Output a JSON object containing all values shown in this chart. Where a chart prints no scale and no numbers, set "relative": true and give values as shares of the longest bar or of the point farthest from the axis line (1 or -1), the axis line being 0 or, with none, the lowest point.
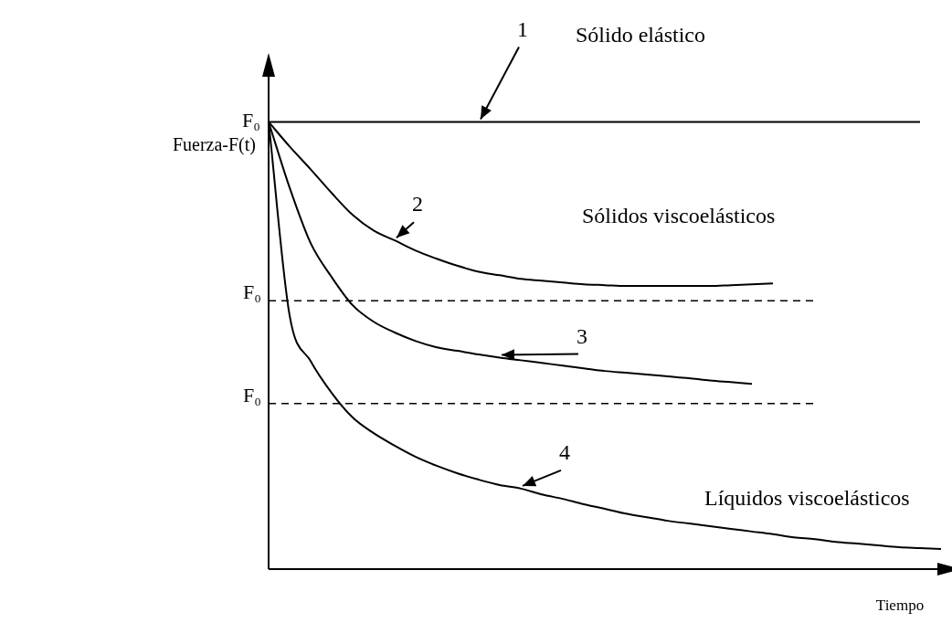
{
  "chart_data": {
    "type": "line",
    "relative": true,
    "xlabel": "Tiempo",
    "ylabel": "Fuerza-F(t)",
    "categories": [
      null,
      null,
      null,
      null,
      null,
      null,
      null,
      null,
      null,
      null,
      null,
      null,
      null,
      null,
      null,
      null,
      null,
      null,
      null,
      null,
      null,
      null,
      null,
      null,
      null,
      null,
      null,
      null,
      null,
      null,
      null,
      null,
      null
    ],
    "series": [
      {
        "name": "1",
        "color": "#000000",
        "values": [
          1,
          1,
          1,
          1,
          1,
          1,
          1,
          1,
          1,
          1,
          1,
          1,
          1,
          1,
          1,
          1,
          1,
          1,
          1,
          1,
          1,
          1,
          1,
          1,
          1,
          1,
          1,
          1,
          1,
          1,
          1,
          1,
          null
        ]
      },
      {
        "name": "2",
        "color": "#000000",
        "values": [
          1,
          0.945,
          0.894,
          0.841,
          0.792,
          0.757,
          0.735,
          0.712,
          0.694,
          0.678,
          0.665,
          0.657,
          0.649,
          0.645,
          0.641,
          0.637,
          0.635,
          0.633,
          0.633,
          0.633,
          0.633,
          0.633,
          0.635,
          0.637,
          0.639,
          null,
          null,
          null,
          null,
          null,
          null,
          null,
          null
        ]
      },
      {
        "name": "3",
        "color": "#000000",
        "values": [
          1,
          0.853,
          0.729,
          0.653,
          0.59,
          0.553,
          0.529,
          0.51,
          0.496,
          0.488,
          0.48,
          0.473,
          0.467,
          0.461,
          0.455,
          0.449,
          0.443,
          0.439,
          0.435,
          0.431,
          0.427,
          0.422,
          0.418,
          0.414,
          null,
          null,
          null,
          null,
          null,
          null,
          null,
          null,
          null
        ]
      },
      {
        "name": "4",
        "color": "#000000",
        "values": [
          1,
          0.567,
          0.465,
          0.394,
          0.339,
          0.304,
          0.276,
          0.251,
          0.231,
          0.214,
          0.2,
          0.188,
          0.18,
          0.167,
          0.157,
          0.145,
          0.135,
          0.124,
          0.116,
          0.108,
          0.102,
          0.096,
          0.09,
          0.084,
          0.078,
          0.071,
          0.067,
          0.061,
          0.057,
          0.053,
          0.049,
          0.047,
          0.045
        ]
      }
    ],
    "ref_lines": [
      {
        "axis": "y",
        "value": 0.6,
        "label": "F₀",
        "color": "#000000",
        "line_style": "dashed"
      },
      {
        "axis": "y",
        "value": 0.37,
        "label": "F₀",
        "color": "#000000",
        "line_style": "dashed"
      }
    ],
    "annotations": [
      "F₀",
      "Sólido elástico",
      "Sólidos viscoelásticos",
      "Líquidos viscoelásticos"
    ],
    "legend": false,
    "grid": false,
    "marker": "none",
    "line_style": "solid"
  }
}
